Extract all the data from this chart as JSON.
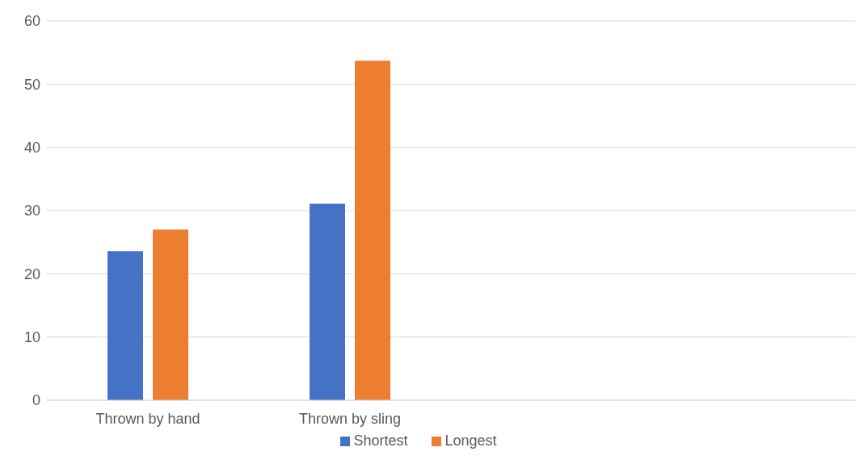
{
  "chart_data": {
    "type": "bar",
    "categories": [
      "Thrown by hand",
      "Thrown by sling",
      null,
      null
    ],
    "series": [
      {
        "name": "Shortest",
        "color": "#4472c4",
        "values": [
          23.6,
          31.1,
          null,
          null
        ]
      },
      {
        "name": "Longest",
        "color": "#ed7d31",
        "values": [
          27.0,
          53.7,
          null,
          null
        ]
      }
    ],
    "ylim": [
      0,
      60
    ],
    "yticks": [
      0,
      10,
      20,
      30,
      40,
      50,
      60
    ],
    "grid": "y",
    "legend": "bottom"
  }
}
